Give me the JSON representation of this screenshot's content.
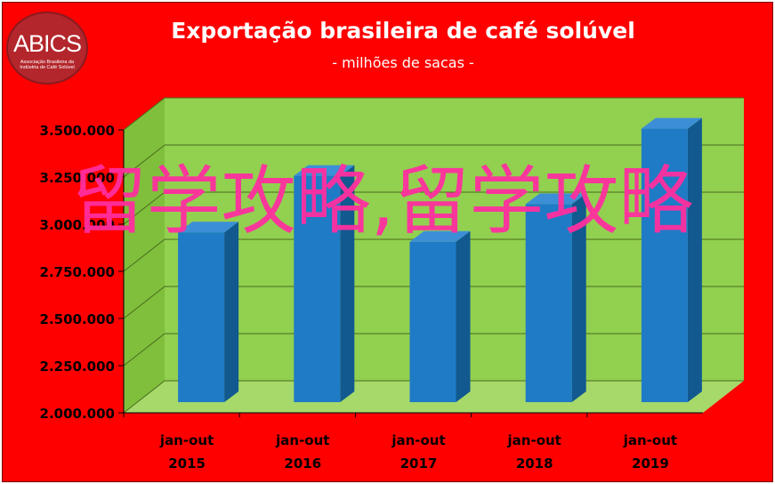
{
  "logo": {
    "text": "ABICS",
    "subtext": "Associação Brasileira da Indústria de Café Solúvel"
  },
  "watermark_text": "留学攻略,留学攻略",
  "colors": {
    "background": "#ff0000",
    "plot_area": "#92d050",
    "bar_front": "#1f7bc6",
    "bar_side": "#11598f",
    "bar_top": "#3c8fd6",
    "axis_text": "#000000",
    "title_text": "#ffffff",
    "watermark": "#ff2fa0"
  },
  "chart_data": {
    "type": "bar",
    "title": "Exportação brasileira de café solúvel",
    "subtitle": "- milhões de sacas -",
    "categories": [
      [
        "jan-out",
        "2015"
      ],
      [
        "jan-out",
        "2016"
      ],
      [
        "jan-out",
        "2017"
      ],
      [
        "jan-out",
        "2018"
      ],
      [
        "jan-out",
        "2019"
      ]
    ],
    "values": [
      2900,
      3200,
      2850,
      3050,
      3450
    ],
    "ylim": [
      2000,
      3500
    ],
    "yticks": [
      2000,
      2250,
      2500,
      2750,
      3000,
      3250,
      3500
    ],
    "ytick_labels": [
      "2.000.000",
      "2.250.000",
      "2.500.000",
      "2.750.000",
      "3.000.000",
      "3.250.000",
      "3.500.000"
    ],
    "grid": true,
    "style": "3d"
  }
}
